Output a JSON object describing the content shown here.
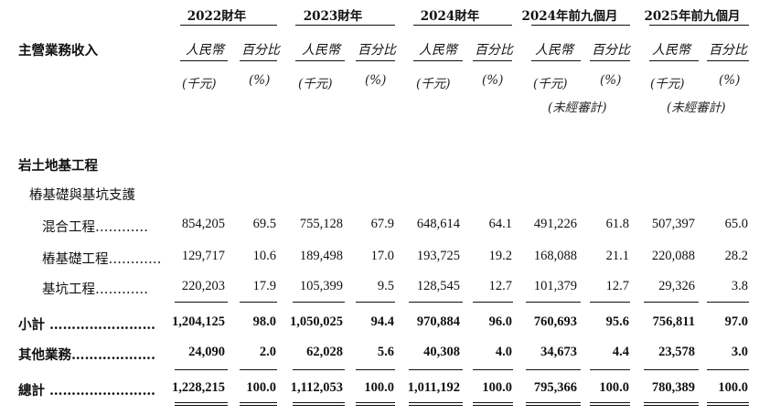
{
  "table": {
    "row_header": "主營業務收入",
    "periods": [
      {
        "title": "2022財年",
        "amount_label": "人民幣",
        "pct_label": "百分比",
        "amount_unit": "(千元)",
        "pct_unit": "(%)",
        "note": ""
      },
      {
        "title": "2023財年",
        "amount_label": "人民幣",
        "pct_label": "百分比",
        "amount_unit": "(千元)",
        "pct_unit": "(%)",
        "note": ""
      },
      {
        "title": "2024財年",
        "amount_label": "人民幣",
        "pct_label": "百分比",
        "amount_unit": "(千元)",
        "pct_unit": "(%)",
        "note": ""
      },
      {
        "title": "2024年前九個月",
        "amount_label": "人民幣",
        "pct_label": "百分比",
        "amount_unit": "(千元)",
        "pct_unit": "(%)",
        "note": "(未經審計)"
      },
      {
        "title": "2025年前九個月",
        "amount_label": "人民幣",
        "pct_label": "百分比",
        "amount_unit": "(千元)",
        "pct_unit": "(%)",
        "note": "(未經審計)"
      }
    ],
    "section_heading": "岩土地基工程",
    "subsection_heading": "樁基礎與基坑支護",
    "rows": [
      {
        "label": "混合工程…………",
        "bold": false,
        "values": [
          "854,205",
          "69.5",
          "755,128",
          "67.9",
          "648,614",
          "64.1",
          "491,226",
          "61.8",
          "507,397",
          "65.0"
        ]
      },
      {
        "label": "樁基礎工程…………",
        "bold": false,
        "values": [
          "129,717",
          "10.6",
          "189,498",
          "17.0",
          "193,725",
          "19.2",
          "168,088",
          "21.1",
          "220,088",
          "28.2"
        ]
      },
      {
        "label": "基坑工程…………",
        "bold": false,
        "values": [
          "220,203",
          "17.9",
          "105,399",
          "9.5",
          "128,545",
          "12.7",
          "101,379",
          "12.7",
          "29,326",
          "3.8"
        ]
      },
      {
        "label": "小計 ……………………",
        "bold": true,
        "values": [
          "1,204,125",
          "98.0",
          "1,050,025",
          "94.4",
          "970,884",
          "96.0",
          "760,693",
          "95.6",
          "756,811",
          "97.0"
        ]
      },
      {
        "label": "其他業務……………………",
        "bold": true,
        "values": [
          "24,090",
          "2.0",
          "62,028",
          "5.6",
          "40,308",
          "4.0",
          "34,673",
          "4.4",
          "23,578",
          "3.0"
        ]
      },
      {
        "label": "總計 ……………………",
        "bold": true,
        "values": [
          "1,228,215",
          "100.0",
          "1,112,053",
          "100.0",
          "1,011,192",
          "100.0",
          "795,366",
          "100.0",
          "780,389",
          "100.0"
        ]
      }
    ]
  }
}
